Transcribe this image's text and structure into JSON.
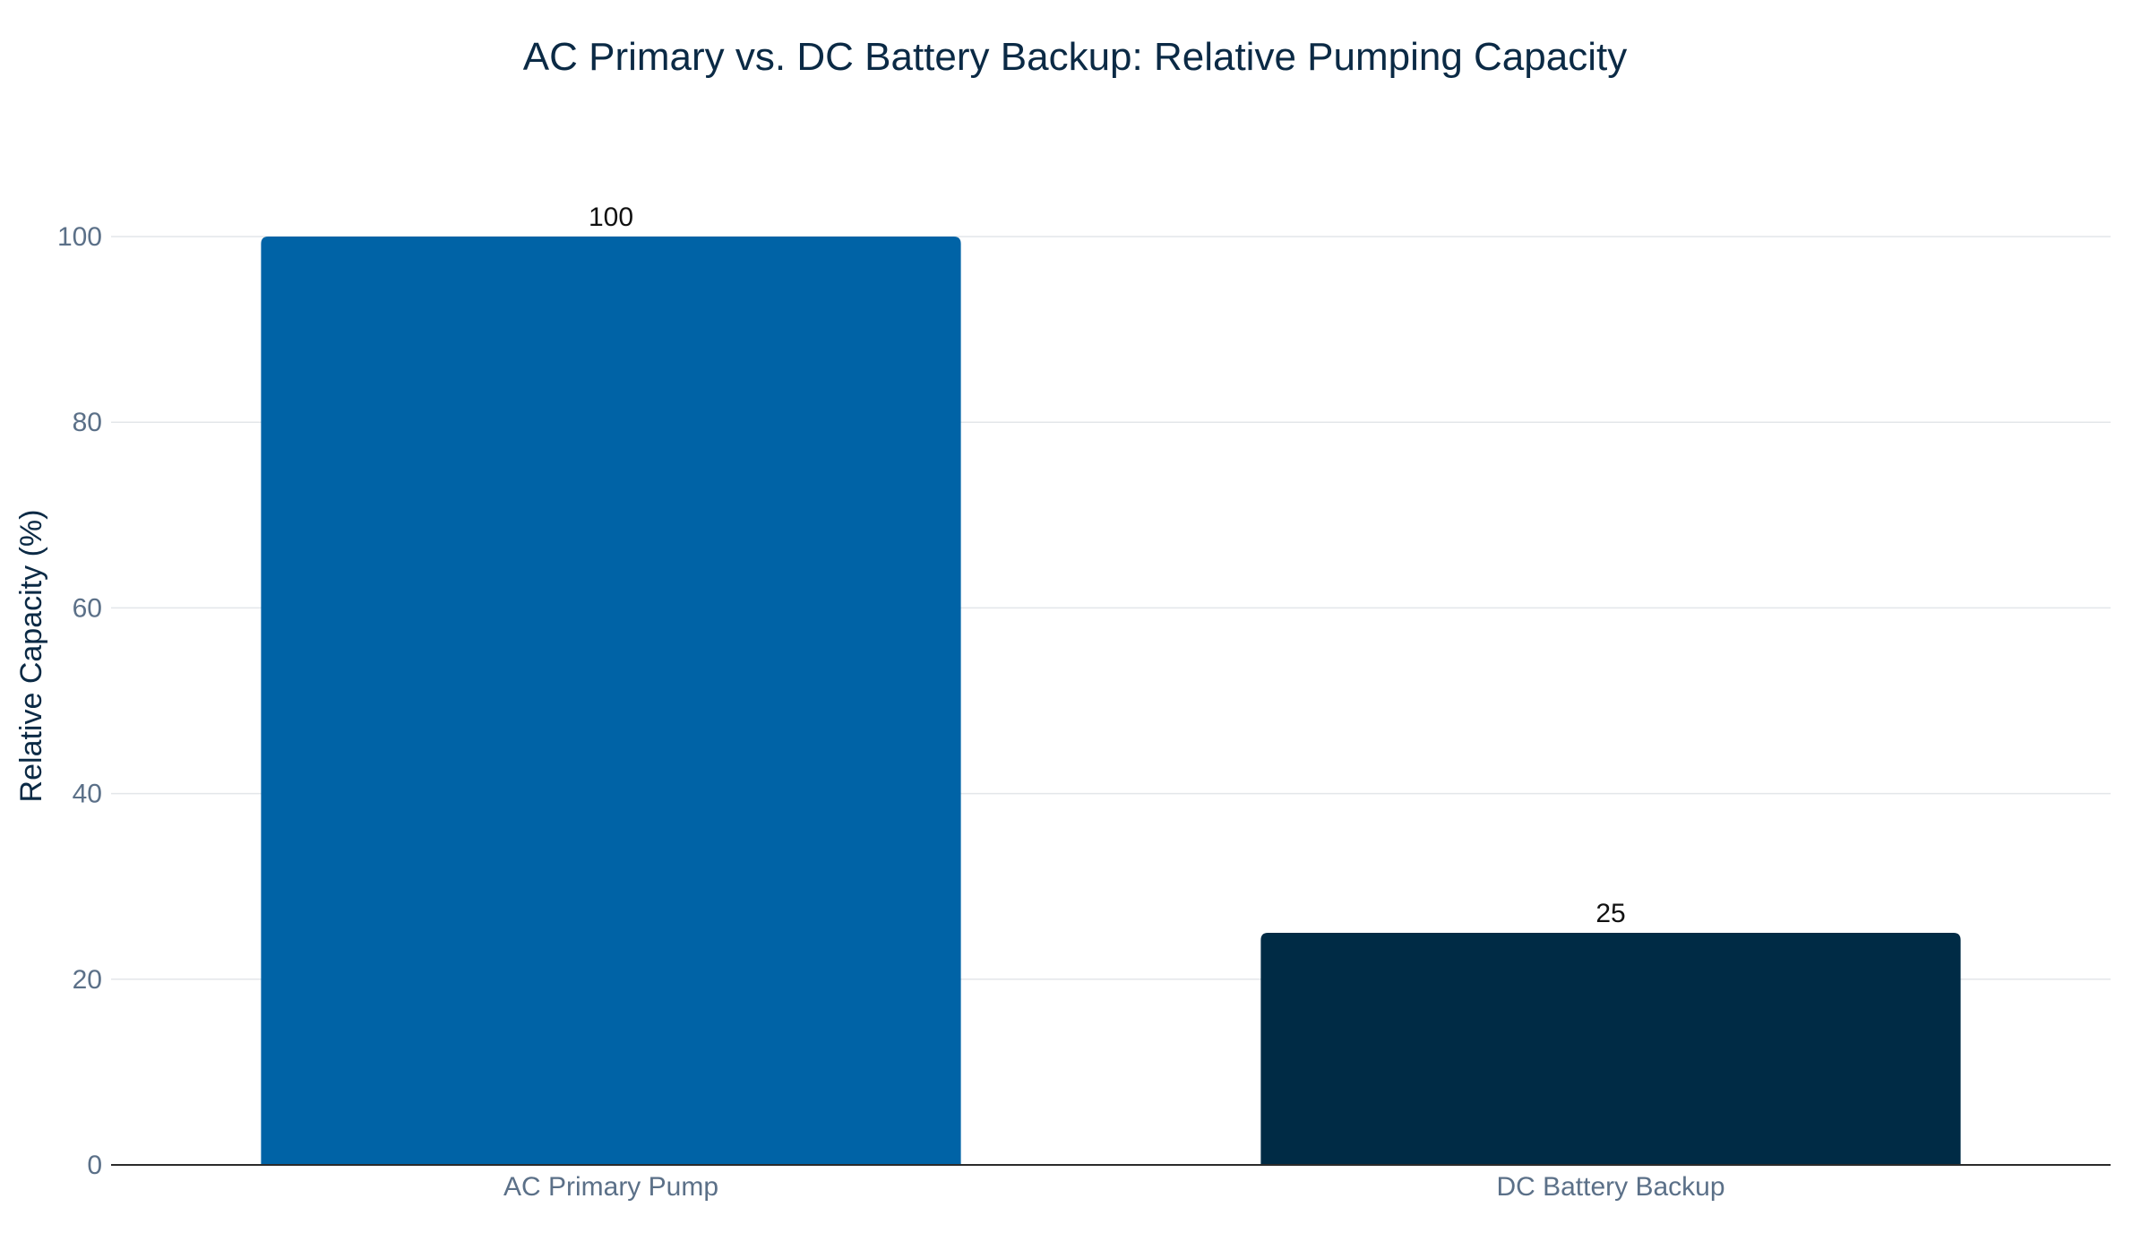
{
  "chart_data": {
    "type": "bar",
    "title": "AC Primary vs. DC Battery Backup: Relative Pumping Capacity",
    "ylabel": "Relative Capacity (%)",
    "xlabel": "",
    "categories": [
      "AC Primary Pump",
      "DC Battery Backup"
    ],
    "values": [
      100,
      25
    ],
    "data_labels": [
      "100",
      "25"
    ],
    "colors": [
      "#0063a6",
      "#002b45"
    ],
    "ylim": [
      0,
      100
    ],
    "yticks": [
      0,
      20,
      40,
      60,
      80,
      100
    ],
    "ytick_labels": [
      "0",
      "20",
      "40",
      "60",
      "80",
      "100"
    ],
    "grid": true,
    "legend": "none"
  }
}
